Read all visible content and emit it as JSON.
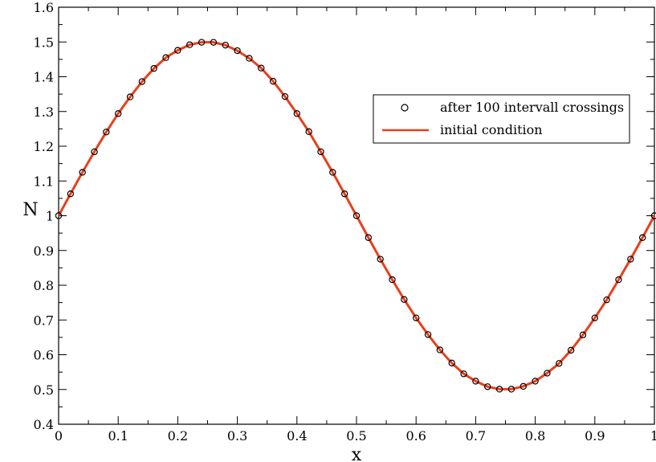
{
  "chart_data": {
    "type": "line",
    "title": "",
    "xlabel": "x",
    "ylabel": "N",
    "xlim": [
      0,
      1
    ],
    "ylim": [
      0.4,
      1.6
    ],
    "x_ticks": [
      "0",
      "0.1",
      "0.2",
      "0.3",
      "0.4",
      "0.5",
      "0.6",
      "0.7",
      "0.8",
      "0.9",
      "1"
    ],
    "y_ticks": [
      "0.4",
      "0.5",
      "0.6",
      "0.7",
      "0.8",
      "0.9",
      "1",
      "1.1",
      "1.2",
      "1.3",
      "1.4",
      "1.5",
      "1.6"
    ],
    "grid": false,
    "legend_position": "top-right",
    "series": [
      {
        "name": "after 100 intervall crossings",
        "marker": "circle",
        "color": "#000000",
        "x": [
          0.0,
          0.02,
          0.04,
          0.06,
          0.08,
          0.1,
          0.12,
          0.14,
          0.16,
          0.18,
          0.2,
          0.22,
          0.24,
          0.26,
          0.28,
          0.3,
          0.32,
          0.34,
          0.36,
          0.38,
          0.4,
          0.42,
          0.44,
          0.46,
          0.48,
          0.5,
          0.52,
          0.54,
          0.56,
          0.58,
          0.6,
          0.62,
          0.64,
          0.66,
          0.68,
          0.7,
          0.72,
          0.74,
          0.76,
          0.78,
          0.8,
          0.82,
          0.84,
          0.86,
          0.88,
          0.9,
          0.92,
          0.94,
          0.96,
          0.98,
          1.0
        ],
        "y": [
          1.0,
          1.063,
          1.125,
          1.184,
          1.241,
          1.294,
          1.342,
          1.386,
          1.424,
          1.455,
          1.476,
          1.492,
          1.499,
          1.499,
          1.491,
          1.475,
          1.453,
          1.425,
          1.387,
          1.343,
          1.294,
          1.242,
          1.184,
          1.125,
          1.063,
          1.0,
          0.937,
          0.875,
          0.816,
          0.759,
          0.706,
          0.658,
          0.614,
          0.576,
          0.545,
          0.524,
          0.508,
          0.501,
          0.501,
          0.509,
          0.524,
          0.547,
          0.575,
          0.613,
          0.657,
          0.706,
          0.758,
          0.816,
          0.875,
          0.937,
          1.0
        ]
      },
      {
        "name": "initial condition",
        "marker": "none",
        "color": "#e8401c",
        "x": [
          0.0,
          0.02,
          0.04,
          0.06,
          0.08,
          0.1,
          0.12,
          0.14,
          0.16,
          0.18,
          0.2,
          0.22,
          0.24,
          0.26,
          0.28,
          0.3,
          0.32,
          0.34,
          0.36,
          0.38,
          0.4,
          0.42,
          0.44,
          0.46,
          0.48,
          0.5,
          0.52,
          0.54,
          0.56,
          0.58,
          0.6,
          0.62,
          0.64,
          0.66,
          0.68,
          0.7,
          0.72,
          0.74,
          0.76,
          0.78,
          0.8,
          0.82,
          0.84,
          0.86,
          0.88,
          0.9,
          0.92,
          0.94,
          0.96,
          0.98,
          1.0
        ],
        "y": [
          1.0,
          1.063,
          1.125,
          1.184,
          1.241,
          1.294,
          1.342,
          1.386,
          1.424,
          1.455,
          1.476,
          1.492,
          1.499,
          1.499,
          1.491,
          1.475,
          1.453,
          1.425,
          1.387,
          1.343,
          1.294,
          1.242,
          1.184,
          1.125,
          1.063,
          1.0,
          0.937,
          0.875,
          0.816,
          0.759,
          0.706,
          0.658,
          0.614,
          0.576,
          0.545,
          0.524,
          0.508,
          0.501,
          0.501,
          0.509,
          0.524,
          0.547,
          0.575,
          0.613,
          0.657,
          0.706,
          0.758,
          0.816,
          0.875,
          0.937,
          1.0
        ]
      }
    ]
  }
}
